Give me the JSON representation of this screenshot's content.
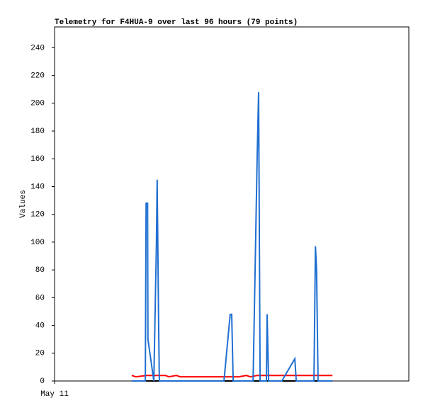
{
  "chart_data": {
    "type": "line",
    "title": "Telemetry for F4HUA-9 over last 96 hours (79 points)",
    "y_label": "Values",
    "xlim": [
      0,
      96
    ],
    "xticks": [
      {
        "value": 0,
        "label": "May 11"
      }
    ],
    "ylim": [
      0,
      255
    ],
    "yticks": [
      0,
      20,
      40,
      60,
      80,
      100,
      120,
      140,
      160,
      180,
      200,
      220,
      240
    ],
    "grid": false,
    "series": [
      {
        "color": "#000000",
        "x": [
          20.9,
          75.3
        ],
        "values": [
          0,
          0
        ]
      },
      {
        "color": "#ff0000",
        "x": [
          20.9,
          22,
          25,
          30,
          31,
          33,
          34,
          45,
          50,
          52,
          53,
          55,
          62,
          75.3
        ],
        "values": [
          4,
          3,
          4,
          4,
          3,
          4,
          3,
          3,
          3,
          4,
          3,
          4,
          4,
          4
        ]
      },
      {
        "color": "#1f6fd1",
        "x": [
          20.9,
          24.6,
          24.8,
          25.2,
          25.3,
          26.9,
          27.6,
          27.8,
          28.2,
          28.4,
          45.9,
          47.6,
          48.0,
          48.4,
          53.8,
          54.9,
          55.3,
          55.7,
          57.4,
          57.6,
          58.0,
          61.6,
          65.1,
          65.5,
          70.3,
          70.7,
          71.0,
          71.4,
          75.3
        ],
        "values": [
          0,
          0,
          128,
          128,
          30,
          0,
          100,
          145,
          40,
          0,
          0,
          48,
          48,
          0,
          0,
          160,
          208,
          0,
          0,
          48,
          0,
          0,
          16,
          0,
          0,
          97,
          80,
          0,
          0
        ]
      }
    ]
  }
}
